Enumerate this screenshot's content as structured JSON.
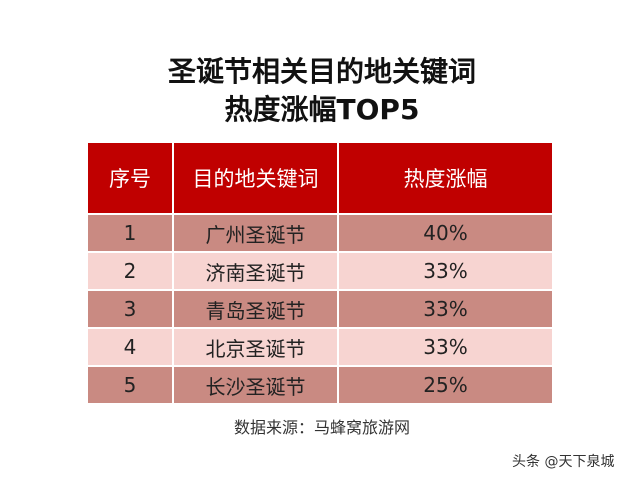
{
  "title_line1": "圣诞节相关目的地关键词",
  "title_line2": "热度涨幅TOP5",
  "table": {
    "headers": [
      "序号",
      "目的地关键词",
      "热度涨幅"
    ],
    "rows": [
      [
        "1",
        "广州圣诞节",
        "40%"
      ],
      [
        "2",
        "济南圣诞节",
        "33%"
      ],
      [
        "3",
        "青岛圣诞节",
        "33%"
      ],
      [
        "4",
        "北京圣诞节",
        "33%"
      ],
      [
        "5",
        "长沙圣诞节",
        "25%"
      ]
    ]
  },
  "source": "数据来源：马蜂窝旅游网",
  "watermark": "头条 @天下泉城",
  "colors": {
    "header": "#c00000",
    "row_dark": "#c98a82",
    "row_light": "#f7d4d1"
  }
}
